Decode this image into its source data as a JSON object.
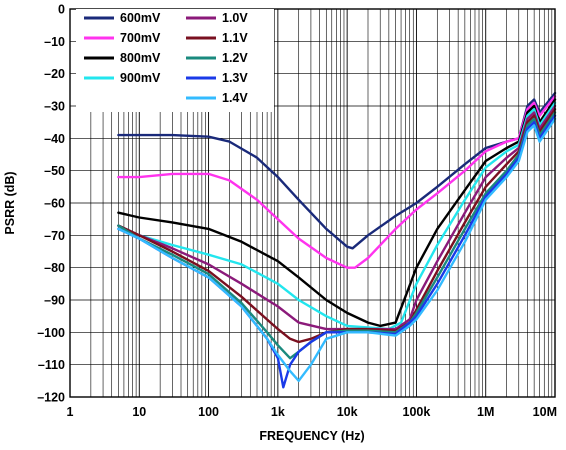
{
  "chart_data": {
    "type": "line",
    "title": "",
    "xlabel": "FREQUENCY (Hz)",
    "ylabel": "PSRR (dB)",
    "x_scale": "log",
    "xlim": [
      1,
      10000000
    ],
    "ylim": [
      -120,
      0
    ],
    "grid": true,
    "legend_position": "top-left",
    "x_ticks": [
      1,
      10,
      100,
      1000,
      10000,
      100000,
      1000000,
      10000000
    ],
    "x_tick_labels": [
      "1",
      "10",
      "100",
      "1k",
      "10k",
      "100k",
      "1M",
      "10M"
    ],
    "y_ticks": [
      0,
      -10,
      -20,
      -30,
      -40,
      -50,
      -60,
      -70,
      -80,
      -90,
      -100,
      -110,
      -120
    ],
    "y_tick_labels": [
      "0",
      "–10",
      "–20",
      "–30",
      "–40",
      "–50",
      "–60",
      "–70",
      "–80",
      "–90",
      "–100",
      "–110",
      "–120"
    ],
    "series": [
      {
        "name": "600mV",
        "color": "#1a2a7a",
        "x": [
          5,
          10,
          30,
          100,
          200,
          500,
          1000,
          2000,
          5000,
          10000,
          12000,
          20000,
          50000,
          100000,
          200000,
          500000,
          1000000,
          2000000,
          3000000,
          4000000,
          5000000,
          6000000,
          10000000
        ],
        "y": [
          -39,
          -39,
          -39,
          -39.5,
          -41,
          -46,
          -52,
          -59,
          -68,
          -73.5,
          -74,
          -70,
          -64,
          -60,
          -55,
          -48,
          -43,
          -41,
          -40,
          -30,
          -28,
          -32,
          -26
        ]
      },
      {
        "name": "700mV",
        "color": "#ff33ee",
        "x": [
          5,
          10,
          30,
          100,
          200,
          500,
          1000,
          2000,
          5000,
          10000,
          13000,
          20000,
          50000,
          100000,
          200000,
          500000,
          1000000,
          2000000,
          3000000,
          4000000,
          5000000,
          6000000,
          10000000
        ],
        "y": [
          -52,
          -52,
          -51,
          -51,
          -53,
          -59,
          -65,
          -71,
          -77,
          -80,
          -80,
          -77,
          -68,
          -62,
          -57,
          -50,
          -44,
          -41,
          -40,
          -31,
          -29,
          -33,
          -27
        ]
      },
      {
        "name": "800mV",
        "color": "#000000",
        "x": [
          5,
          10,
          30,
          100,
          300,
          1000,
          2000,
          5000,
          10000,
          20000,
          30000,
          50000,
          100000,
          200000,
          500000,
          1000000,
          2000000,
          3000000,
          4000000,
          5000000,
          6000000,
          10000000
        ],
        "y": [
          -63,
          -64.5,
          -66,
          -68,
          -72,
          -78,
          -83,
          -90,
          -94,
          -97,
          -98,
          -97,
          -80,
          -68,
          -56,
          -47,
          -43,
          -41,
          -32,
          -30,
          -35,
          -28
        ]
      },
      {
        "name": "900mV",
        "color": "#22e6ee",
        "x": [
          5,
          10,
          30,
          100,
          300,
          1000,
          2000,
          5000,
          10000,
          20000,
          40000,
          60000,
          100000,
          200000,
          500000,
          1000000,
          2000000,
          3000000,
          4000000,
          5000000,
          6000000,
          10000000
        ],
        "y": [
          -67,
          -70,
          -73,
          -76,
          -79,
          -85,
          -90,
          -95,
          -98,
          -98.5,
          -99,
          -97,
          -85,
          -73,
          -59,
          -49,
          -44,
          -42,
          -33,
          -31,
          -36,
          -29
        ]
      },
      {
        "name": "1.0V",
        "color": "#8b1a7a",
        "x": [
          5,
          10,
          30,
          100,
          300,
          1000,
          2000,
          5000,
          10000,
          20000,
          50000,
          80000,
          100000,
          200000,
          500000,
          1000000,
          2000000,
          3000000,
          4000000,
          5000000,
          6000000,
          10000000
        ],
        "y": [
          -67,
          -70,
          -74,
          -79,
          -85,
          -92,
          -97,
          -99,
          -99,
          -99,
          -99,
          -96,
          -90,
          -78,
          -63,
          -52,
          -46,
          -43,
          -34,
          -32,
          -37,
          -30
        ]
      },
      {
        "name": "1.1V",
        "color": "#7a1020",
        "x": [
          5,
          10,
          30,
          100,
          300,
          1000,
          1500,
          2000,
          3000,
          5000,
          10000,
          20000,
          50000,
          80000,
          100000,
          200000,
          500000,
          1000000,
          2000000,
          3000000,
          4000000,
          5000000,
          6000000,
          10000000
        ],
        "y": [
          -67,
          -70,
          -75,
          -81,
          -89,
          -99,
          -102,
          -103,
          -102,
          -100,
          -99,
          -99,
          -99.5,
          -97,
          -93,
          -81,
          -66,
          -55,
          -48,
          -44,
          -35,
          -33,
          -38,
          -31
        ]
      },
      {
        "name": "1.2V",
        "color": "#1a8a7e",
        "x": [
          5,
          10,
          30,
          100,
          300,
          700,
          1000,
          1500,
          2000,
          3000,
          5000,
          10000,
          20000,
          50000,
          80000,
          100000,
          200000,
          500000,
          1000000,
          2000000,
          3000000,
          4000000,
          5000000,
          6000000,
          10000000
        ],
        "y": [
          -67,
          -71,
          -76,
          -82,
          -91,
          -100,
          -104,
          -108,
          -106,
          -103,
          -100,
          -99.5,
          -99.5,
          -100,
          -97,
          -94,
          -83,
          -68,
          -57,
          -50,
          -45,
          -36,
          -34,
          -39,
          -32
        ]
      },
      {
        "name": "1.3V",
        "color": "#1a3ae8",
        "x": [
          5,
          10,
          30,
          100,
          300,
          700,
          1000,
          1200,
          1500,
          2000,
          3000,
          5000,
          10000,
          20000,
          50000,
          80000,
          100000,
          200000,
          500000,
          1000000,
          2000000,
          3000000,
          4000000,
          5000000,
          6000000,
          10000000
        ],
        "y": [
          -68,
          -71,
          -77,
          -83,
          -92,
          -102,
          -108,
          -117,
          -110,
          -106,
          -103,
          -100,
          -100,
          -100,
          -100.5,
          -97,
          -95,
          -85,
          -70,
          -58,
          -51,
          -46,
          -37,
          -35,
          -40,
          -33
        ]
      },
      {
        "name": "1.4V",
        "color": "#33bbff",
        "x": [
          5,
          10,
          30,
          100,
          300,
          700,
          1000,
          1500,
          2000,
          3000,
          5000,
          10000,
          20000,
          50000,
          80000,
          100000,
          200000,
          500000,
          1000000,
          2000000,
          3000000,
          4000000,
          5000000,
          6000000,
          10000000
        ],
        "y": [
          -68,
          -71,
          -77,
          -83,
          -92,
          -102,
          -107,
          -112,
          -115,
          -110,
          -102,
          -100,
          -100,
          -101,
          -98,
          -96,
          -87,
          -72,
          -59,
          -52,
          -47,
          -38,
          -36,
          -41,
          -34
        ]
      }
    ]
  }
}
